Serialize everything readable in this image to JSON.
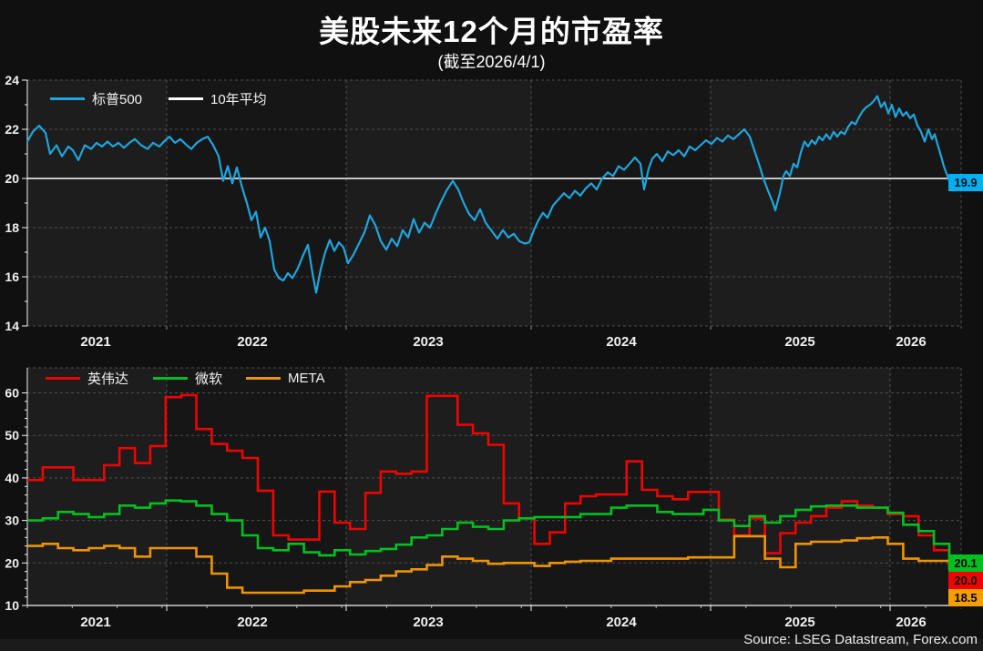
{
  "title": "美股未来12个月的市盈率",
  "subtitle": "(截至2026/4/1)",
  "source": "Source: LSEG Datastream, Forex.com",
  "colors": {
    "background": "#101010",
    "band_light": "#1d1d1d",
    "band_dark": "#161616",
    "grid": "#4f4f4f",
    "axis": "#f5f5f5",
    "tick_label": "#f0f0f0",
    "sp500_line": "#1fa5dc",
    "avg_line": "#ffffff",
    "nvidia_line": "#ee0400",
    "msft_line": "#00c020",
    "meta_line": "#ef9400",
    "sp500_tag_bg": "#00b0f0",
    "msft_tag_bg": "#00c020",
    "nvda_tag_bg": "#ee0400",
    "meta_tag_bg": "#f59e00"
  },
  "chart_data": [
    {
      "type": "line",
      "panel": "top",
      "legend": [
        {
          "label": "标普500",
          "color": "#1fa5dc"
        },
        {
          "label": "10年平均",
          "color": "#ffffff"
        }
      ],
      "ylim": [
        14,
        24
      ],
      "yticks": [
        14,
        16,
        18,
        20,
        22,
        24
      ],
      "x_year_labels": [
        "2021",
        "2022",
        "2023",
        "2024",
        "2025",
        "2026"
      ],
      "grid": "dashed",
      "legend_position": "top-left",
      "avg_line_value": 20,
      "end_label": {
        "text": "19.9",
        "color": "#00b0f0"
      },
      "series": [
        {
          "name": "标普500",
          "color": "#1fa5dc",
          "points": [
            [
              30,
              21.5
            ],
            [
              36,
              21.9
            ],
            [
              43,
              22.15
            ],
            [
              50,
              21.85
            ],
            [
              55,
              21
            ],
            [
              62,
              21.35
            ],
            [
              68,
              20.9
            ],
            [
              75,
              21.3
            ],
            [
              80,
              21.15
            ],
            [
              86,
              20.75
            ],
            [
              93,
              21.35
            ],
            [
              100,
              21.2
            ],
            [
              106,
              21.45
            ],
            [
              112,
              21.3
            ],
            [
              118,
              21.5
            ],
            [
              124,
              21.3
            ],
            [
              130,
              21.45
            ],
            [
              136,
              21.25
            ],
            [
              142,
              21.45
            ],
            [
              148,
              21.6
            ],
            [
              155,
              21.35
            ],
            [
              162,
              21.2
            ],
            [
              168,
              21.45
            ],
            [
              175,
              21.3
            ],
            [
              180,
              21.5
            ],
            [
              186,
              21.7
            ],
            [
              192,
              21.45
            ],
            [
              198,
              21.6
            ],
            [
              205,
              21.35
            ],
            [
              210,
              21.2
            ],
            [
              216,
              21.45
            ],
            [
              222,
              21.6
            ],
            [
              228,
              21.7
            ],
            [
              234,
              21.35
            ],
            [
              240,
              20.9
            ],
            [
              245,
              19.9
            ],
            [
              250,
              20.5
            ],
            [
              255,
              19.8
            ],
            [
              260,
              20.45
            ],
            [
              266,
              19.6
            ],
            [
              271,
              19
            ],
            [
              276,
              18.3
            ],
            [
              281,
              18.65
            ],
            [
              286,
              17.6
            ],
            [
              291,
              18
            ],
            [
              296,
              17.45
            ],
            [
              301,
              16.3
            ],
            [
              306,
              15.95
            ],
            [
              311,
              15.85
            ],
            [
              316,
              16.15
            ],
            [
              321,
              15.95
            ],
            [
              327,
              16.35
            ],
            [
              333,
              16.9
            ],
            [
              338,
              17.3
            ],
            [
              343,
              16.15
            ],
            [
              347,
              15.35
            ],
            [
              352,
              16.3
            ],
            [
              357,
              17
            ],
            [
              362,
              17.5
            ],
            [
              367,
              17.05
            ],
            [
              372,
              17.4
            ],
            [
              377,
              17.2
            ],
            [
              382,
              16.55
            ],
            [
              388,
              16.9
            ],
            [
              394,
              17.35
            ],
            [
              400,
              17.8
            ],
            [
              406,
              18.5
            ],
            [
              412,
              18.1
            ],
            [
              418,
              17.45
            ],
            [
              424,
              17.1
            ],
            [
              430,
              17.55
            ],
            [
              436,
              17.25
            ],
            [
              442,
              17.9
            ],
            [
              448,
              17.6
            ],
            [
              454,
              18.35
            ],
            [
              460,
              17.8
            ],
            [
              466,
              18.2
            ],
            [
              472,
              18
            ],
            [
              478,
              18.55
            ],
            [
              484,
              19.05
            ],
            [
              490,
              19.5
            ],
            [
              497,
              19.9
            ],
            [
              503,
              19.55
            ],
            [
              509,
              19
            ],
            [
              515,
              18.55
            ],
            [
              521,
              18.3
            ],
            [
              527,
              18.75
            ],
            [
              533,
              18.2
            ],
            [
              540,
              17.85
            ],
            [
              546,
              17.55
            ],
            [
              552,
              17.9
            ],
            [
              558,
              17.6
            ],
            [
              564,
              17.75
            ],
            [
              570,
              17.45
            ],
            [
              576,
              17.35
            ],
            [
              581,
              17.4
            ],
            [
              586,
              17.9
            ],
            [
              591,
              18.3
            ],
            [
              596,
              18.6
            ],
            [
              601,
              18.4
            ],
            [
              607,
              18.9
            ],
            [
              613,
              19.15
            ],
            [
              619,
              19.4
            ],
            [
              625,
              19.2
            ],
            [
              631,
              19.5
            ],
            [
              637,
              19.3
            ],
            [
              643,
              19.6
            ],
            [
              649,
              19.8
            ],
            [
              655,
              19.55
            ],
            [
              661,
              20
            ],
            [
              667,
              20.25
            ],
            [
              673,
              20.1
            ],
            [
              679,
              20.5
            ],
            [
              685,
              20.35
            ],
            [
              691,
              20.6
            ],
            [
              697,
              20.85
            ],
            [
              703,
              20.6
            ],
            [
              707,
              19.55
            ],
            [
              712,
              20.4
            ],
            [
              716,
              20.8
            ],
            [
              721,
              21
            ],
            [
              727,
              20.7
            ],
            [
              733,
              21.1
            ],
            [
              739,
              20.95
            ],
            [
              745,
              21.15
            ],
            [
              751,
              20.9
            ],
            [
              757,
              21.3
            ],
            [
              763,
              21.15
            ],
            [
              769,
              21.35
            ],
            [
              775,
              21.55
            ],
            [
              781,
              21.4
            ],
            [
              787,
              21.65
            ],
            [
              793,
              21.5
            ],
            [
              799,
              21.75
            ],
            [
              805,
              21.6
            ],
            [
              811,
              21.8
            ],
            [
              817,
              22
            ],
            [
              823,
              21.7
            ],
            [
              828,
              21.15
            ],
            [
              833,
              20.6
            ],
            [
              838,
              20
            ],
            [
              843,
              19.5
            ],
            [
              848,
              19.05
            ],
            [
              851,
              18.7
            ],
            [
              856,
              19.4
            ],
            [
              860,
              20.1
            ],
            [
              863,
              20.3
            ],
            [
              867,
              20.1
            ],
            [
              871,
              20.6
            ],
            [
              875,
              20.45
            ],
            [
              879,
              21.05
            ],
            [
              883,
              21.5
            ],
            [
              887,
              21.3
            ],
            [
              891,
              21.55
            ],
            [
              895,
              21.4
            ],
            [
              899,
              21.7
            ],
            [
              903,
              21.55
            ],
            [
              907,
              21.8
            ],
            [
              911,
              21.6
            ],
            [
              915,
              21.9
            ],
            [
              919,
              21.7
            ],
            [
              923,
              21.9
            ],
            [
              927,
              21.8
            ],
            [
              931,
              22.1
            ],
            [
              935,
              22.3
            ],
            [
              939,
              22.2
            ],
            [
              943,
              22.5
            ],
            [
              947,
              22.75
            ],
            [
              951,
              22.9
            ],
            [
              955,
              23
            ],
            [
              959,
              23.15
            ],
            [
              963,
              23.35
            ],
            [
              967,
              22.9
            ],
            [
              971,
              23.1
            ],
            [
              975,
              22.65
            ],
            [
              979,
              23
            ],
            [
              983,
              22.5
            ],
            [
              987,
              22.85
            ],
            [
              991,
              22.55
            ],
            [
              995,
              22.7
            ],
            [
              999,
              22.45
            ],
            [
              1003,
              22.6
            ],
            [
              1007,
              22.15
            ],
            [
              1011,
              21.9
            ],
            [
              1015,
              21.5
            ],
            [
              1019,
              22
            ],
            [
              1023,
              21.6
            ],
            [
              1026,
              21.8
            ],
            [
              1029,
              21.4
            ],
            [
              1033,
              20.9
            ],
            [
              1036,
              20.5
            ],
            [
              1039,
              20.2
            ],
            [
              1042,
              19.9
            ]
          ]
        }
      ]
    },
    {
      "type": "step-line",
      "panel": "bottom",
      "legend": [
        {
          "label": "英伟达",
          "color": "#ee0400"
        },
        {
          "label": "微软",
          "color": "#00c020"
        },
        {
          "label": "META",
          "color": "#ef9400"
        }
      ],
      "ylim": [
        10,
        66
      ],
      "yticks": [
        10,
        20,
        30,
        40,
        50,
        60
      ],
      "x_year_labels": [
        "2021",
        "2022",
        "2023",
        "2024",
        "2025",
        "2026"
      ],
      "grid": "dashed",
      "legend_position": "top-left",
      "series": [
        {
          "name": "英伟达",
          "color": "#ee0400",
          "values": [
            39.5,
            42.5,
            42.5,
            39.5,
            39.5,
            43,
            47,
            43.5,
            47.5,
            59,
            59.5,
            51.5,
            48,
            46.4,
            44.7,
            37,
            26.5,
            25.5,
            25.5,
            36.8,
            29.5,
            28,
            36.5,
            41.5,
            41,
            41.5,
            59.3,
            59.3,
            52.5,
            50.5,
            47.8,
            34,
            30.5,
            24.5,
            27.2,
            34,
            35.7,
            36.1,
            36.1,
            43.9,
            37.2,
            35.7,
            35,
            36.7,
            36.7,
            30.2,
            26.5,
            30.5,
            22.3,
            27,
            29.5,
            31,
            33,
            34.5,
            33.5,
            33,
            31.5,
            31,
            26.5,
            23,
            20
          ]
        },
        {
          "name": "微软",
          "color": "#00c020",
          "values": [
            30,
            30.5,
            32,
            31.5,
            30.8,
            31.5,
            33.5,
            33,
            34,
            34.7,
            34.5,
            33.5,
            31.5,
            30,
            26.5,
            23.5,
            23,
            24.5,
            22.5,
            21.8,
            23,
            22,
            22.8,
            23.3,
            24.3,
            26,
            26.5,
            28,
            29.5,
            28.5,
            28,
            30,
            30.5,
            30.8,
            30.8,
            30.8,
            31.5,
            31.5,
            33,
            33.5,
            33.5,
            32,
            31.5,
            31.5,
            32.5,
            30,
            28.7,
            31,
            29.5,
            31,
            32.5,
            33.3,
            33.5,
            33.5,
            33,
            33,
            31.8,
            29,
            27.5,
            24.5,
            20.1
          ]
        },
        {
          "name": "META",
          "color": "#ef9400",
          "values": [
            24,
            24.5,
            23.5,
            23,
            23.5,
            24,
            23.5,
            21.5,
            23.5,
            23.5,
            23.5,
            21.5,
            17.5,
            14.2,
            13,
            13,
            13,
            13,
            13.5,
            13.5,
            14.5,
            15.5,
            16,
            17,
            18,
            18.5,
            19.5,
            21.5,
            21,
            20.5,
            19.8,
            20,
            20,
            19.3,
            20,
            20.3,
            20.5,
            20.5,
            21,
            21,
            21,
            21,
            21,
            21.3,
            21.3,
            21.3,
            26.3,
            26.3,
            21,
            19,
            24.5,
            25,
            25,
            25.3,
            25.8,
            26,
            24.5,
            21,
            20.5,
            20.5,
            18.5
          ]
        }
      ],
      "end_labels": [
        {
          "text": "20.1",
          "color": "#00c020"
        },
        {
          "text": "20.0",
          "color": "#ee0400"
        },
        {
          "text": "18.5",
          "color": "#f59e00"
        }
      ]
    }
  ]
}
